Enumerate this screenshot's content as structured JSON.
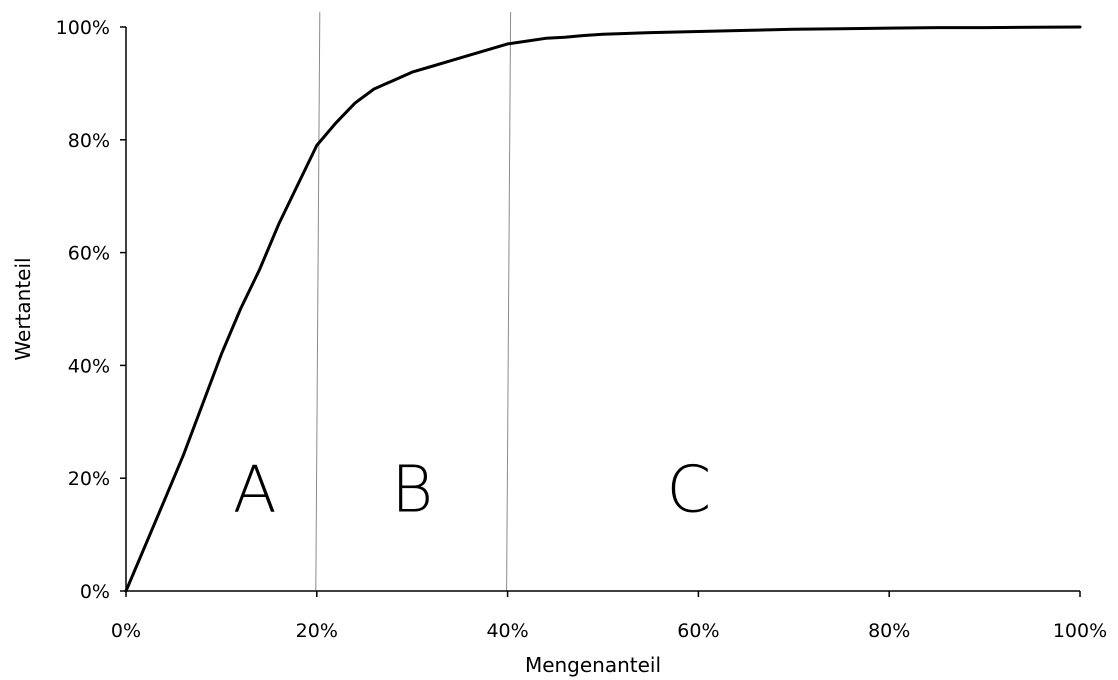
{
  "chart_data": {
    "type": "line",
    "xlabel": "Mengenanteil",
    "ylabel": "Wertanteil",
    "xlim": [
      0,
      100
    ],
    "ylim": [
      0,
      100
    ],
    "x_ticks": [
      "0%",
      "20%",
      "40%",
      "60%",
      "80%",
      "100%"
    ],
    "y_ticks": [
      "0%",
      "20%",
      "40%",
      "60%",
      "80%",
      "100%"
    ],
    "grid": false,
    "separators": [
      20,
      40
    ],
    "zones": [
      {
        "label": "A",
        "x": 13.5,
        "y": 18
      },
      {
        "label": "B",
        "x": 30,
        "y": 18
      },
      {
        "label": "C",
        "x": 59,
        "y": 18
      }
    ],
    "series": [
      {
        "x": [
          0,
          2,
          4,
          6,
          8,
          10,
          12,
          14,
          16,
          18,
          20,
          22,
          24,
          26,
          28,
          30,
          32,
          34,
          36,
          38,
          40,
          42,
          44,
          46,
          48,
          50,
          55,
          60,
          65,
          70,
          75,
          80,
          85,
          90,
          95,
          100
        ],
        "values": [
          0,
          8,
          16,
          24,
          33,
          42,
          50,
          57,
          65,
          72,
          79,
          83,
          86.5,
          89,
          90.5,
          92,
          93,
          94,
          95,
          96,
          97,
          97.5,
          98,
          98.2,
          98.5,
          98.7,
          99,
          99.2,
          99.4,
          99.6,
          99.7,
          99.8,
          99.9,
          99.9,
          99.95,
          100
        ]
      }
    ]
  }
}
